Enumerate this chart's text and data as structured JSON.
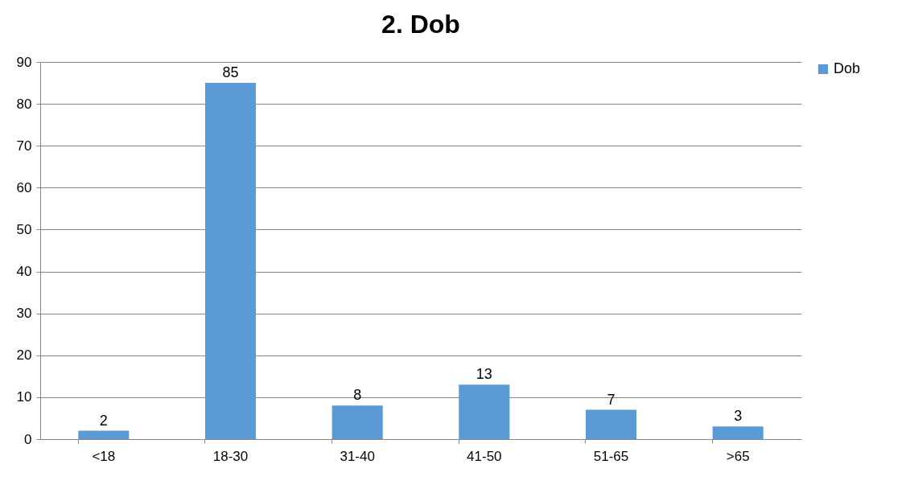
{
  "chart_data": {
    "type": "bar",
    "title": "2. Dob",
    "categories": [
      "<18",
      "18-30",
      "31-40",
      "41-50",
      "51-65",
      ">65"
    ],
    "series": [
      {
        "name": "Dob",
        "color": "#5b9bd5",
        "values": [
          2,
          85,
          8,
          13,
          7,
          3
        ]
      }
    ],
    "ylim": [
      0,
      90
    ],
    "yticks": [
      0,
      10,
      20,
      30,
      40,
      50,
      60,
      70,
      80,
      90
    ],
    "grid": "y",
    "legend": "right",
    "data_labels": true
  }
}
